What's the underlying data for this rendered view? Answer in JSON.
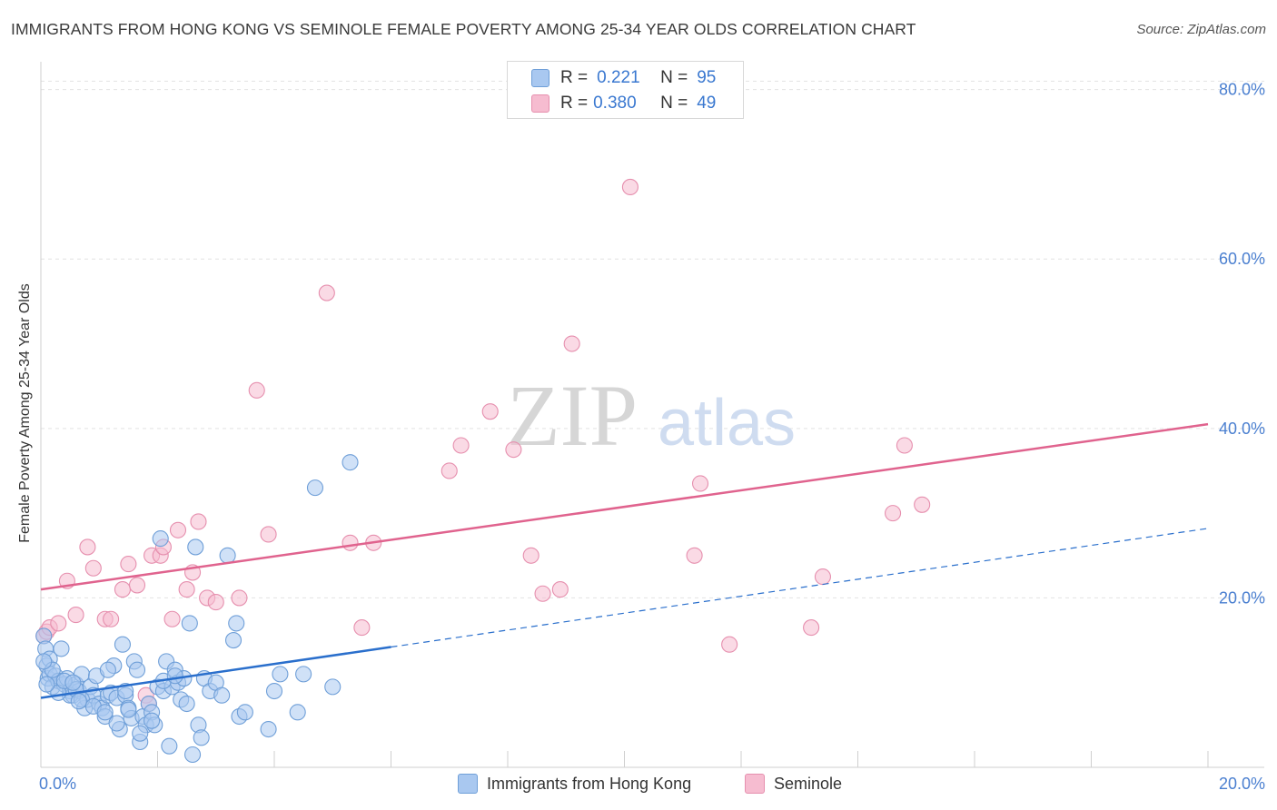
{
  "title": "IMMIGRANTS FROM HONG KONG VS SEMINOLE FEMALE POVERTY AMONG 25-34 YEAR OLDS CORRELATION CHART",
  "source": "Source: ZipAtlas.com",
  "watermark": {
    "zip": "ZIP",
    "atlas": "atlas"
  },
  "legend": {
    "rows": [
      {
        "r_label": "R =",
        "r_value": "0.221",
        "n_label": "N =",
        "n_value": "95"
      },
      {
        "r_label": "R =",
        "r_value": "0.380",
        "n_label": "N =",
        "n_value": "49"
      }
    ]
  },
  "bottom_legend": [
    "Immigrants from Hong Kong",
    "Seminole"
  ],
  "colors": {
    "blue_fill": "#a9c8f0",
    "blue_stroke": "#6f9fd8",
    "blue_line": "#2a6fcc",
    "pink_fill": "#f6bcd0",
    "pink_stroke": "#e68fae",
    "pink_line": "#e0638e",
    "tick_text": "#4a7fd0",
    "grid": "#e2e2e2"
  },
  "chart_data": {
    "type": "scatter",
    "title": "IMMIGRANTS FROM HONG KONG VS SEMINOLE FEMALE POVERTY AMONG 25-34 YEAR OLDS CORRELATION CHART",
    "xlabel": "",
    "ylabel": "Female Poverty Among 25-34 Year Olds",
    "xlim": [
      0,
      20
    ],
    "ylim": [
      0,
      82
    ],
    "x_ticks": [
      "0.0%",
      "20.0%"
    ],
    "y_ticks": [
      {
        "value": 20,
        "label": "20.0%"
      },
      {
        "value": 40,
        "label": "40.0%"
      },
      {
        "value": 60,
        "label": "60.0%"
      },
      {
        "value": 80,
        "label": "80.0%"
      }
    ],
    "series": [
      {
        "name": "Immigrants from Hong Kong",
        "color": "blue",
        "trend": {
          "x0": 0,
          "y0": 8.2,
          "x1": 20,
          "y1": 28.2,
          "solid_until": 6
        },
        "points": [
          [
            0.05,
            15.5
          ],
          [
            0.08,
            14.0
          ],
          [
            0.1,
            12.0
          ],
          [
            0.12,
            10.5
          ],
          [
            0.15,
            11.0
          ],
          [
            0.2,
            9.5
          ],
          [
            0.25,
            10.8
          ],
          [
            0.3,
            10.2
          ],
          [
            0.35,
            14.0
          ],
          [
            0.4,
            9.8
          ],
          [
            0.45,
            10.5
          ],
          [
            0.5,
            9.0
          ],
          [
            0.55,
            8.5
          ],
          [
            0.6,
            9.8
          ],
          [
            0.65,
            9.0
          ],
          [
            0.7,
            11.0
          ],
          [
            0.75,
            7.0
          ],
          [
            0.8,
            8.0
          ],
          [
            0.85,
            9.5
          ],
          [
            0.9,
            8.5
          ],
          [
            0.95,
            10.8
          ],
          [
            1.0,
            7.5
          ],
          [
            1.05,
            7.0
          ],
          [
            1.1,
            6.0
          ],
          [
            1.15,
            8.5
          ],
          [
            1.2,
            8.8
          ],
          [
            1.25,
            12.0
          ],
          [
            1.3,
            8.2
          ],
          [
            1.35,
            4.5
          ],
          [
            1.4,
            14.5
          ],
          [
            1.45,
            8.5
          ],
          [
            1.5,
            7.0
          ],
          [
            1.55,
            5.8
          ],
          [
            1.6,
            12.5
          ],
          [
            1.65,
            11.5
          ],
          [
            1.7,
            3.0
          ],
          [
            1.75,
            6.0
          ],
          [
            1.8,
            5.0
          ],
          [
            1.85,
            7.5
          ],
          [
            1.9,
            6.5
          ],
          [
            1.95,
            5.0
          ],
          [
            2.0,
            9.5
          ],
          [
            2.05,
            27.0
          ],
          [
            2.1,
            9.0
          ],
          [
            2.15,
            12.5
          ],
          [
            2.2,
            2.5
          ],
          [
            2.25,
            9.5
          ],
          [
            2.3,
            11.5
          ],
          [
            2.35,
            10.0
          ],
          [
            2.4,
            8.0
          ],
          [
            2.45,
            10.5
          ],
          [
            2.5,
            7.5
          ],
          [
            2.55,
            17.0
          ],
          [
            2.6,
            1.5
          ],
          [
            2.65,
            26.0
          ],
          [
            2.7,
            5.0
          ],
          [
            2.75,
            3.5
          ],
          [
            2.8,
            10.5
          ],
          [
            2.9,
            9.0
          ],
          [
            3.0,
            10.0
          ],
          [
            3.1,
            8.5
          ],
          [
            3.2,
            25.0
          ],
          [
            3.3,
            15.0
          ],
          [
            3.35,
            17.0
          ],
          [
            3.4,
            6.0
          ],
          [
            3.5,
            6.5
          ],
          [
            3.9,
            4.5
          ],
          [
            4.0,
            9.0
          ],
          [
            4.1,
            11.0
          ],
          [
            4.4,
            6.5
          ],
          [
            4.5,
            11.0
          ],
          [
            4.7,
            33.0
          ],
          [
            5.0,
            9.5
          ],
          [
            5.3,
            36.0
          ],
          [
            0.5,
            8.5
          ],
          [
            0.6,
            9.2
          ],
          [
            0.7,
            8.0
          ],
          [
            0.9,
            7.2
          ],
          [
            1.1,
            6.5
          ],
          [
            1.3,
            5.2
          ],
          [
            1.5,
            6.8
          ],
          [
            1.7,
            4.0
          ],
          [
            1.9,
            5.5
          ],
          [
            2.1,
            10.2
          ],
          [
            2.3,
            10.8
          ],
          [
            0.15,
            12.8
          ],
          [
            0.3,
            8.8
          ],
          [
            0.4,
            10.2
          ],
          [
            0.2,
            11.5
          ],
          [
            0.1,
            9.8
          ],
          [
            0.05,
            12.5
          ],
          [
            0.55,
            10.0
          ],
          [
            0.65,
            7.8
          ],
          [
            1.15,
            11.5
          ],
          [
            1.45,
            9.0
          ]
        ]
      },
      {
        "name": "Seminole",
        "color": "pink",
        "trend": {
          "x0": 0,
          "y0": 21.0,
          "x1": 20,
          "y1": 40.5
        },
        "points": [
          [
            0.05,
            15.5
          ],
          [
            0.1,
            16.0
          ],
          [
            0.15,
            16.5
          ],
          [
            0.3,
            17.0
          ],
          [
            0.45,
            22.0
          ],
          [
            0.6,
            18.0
          ],
          [
            0.8,
            26.0
          ],
          [
            0.9,
            23.5
          ],
          [
            1.1,
            17.5
          ],
          [
            1.2,
            17.5
          ],
          [
            1.4,
            21.0
          ],
          [
            1.5,
            24.0
          ],
          [
            1.65,
            21.5
          ],
          [
            1.8,
            8.5
          ],
          [
            1.85,
            7.5
          ],
          [
            1.9,
            25.0
          ],
          [
            2.05,
            25.0
          ],
          [
            2.1,
            26.0
          ],
          [
            2.25,
            17.5
          ],
          [
            2.35,
            28.0
          ],
          [
            2.5,
            21.0
          ],
          [
            2.6,
            23.0
          ],
          [
            2.7,
            29.0
          ],
          [
            2.85,
            20.0
          ],
          [
            3.0,
            19.5
          ],
          [
            3.4,
            20.0
          ],
          [
            3.7,
            44.5
          ],
          [
            3.9,
            27.5
          ],
          [
            4.9,
            56.0
          ],
          [
            5.3,
            26.5
          ],
          [
            5.5,
            16.5
          ],
          [
            5.7,
            26.5
          ],
          [
            7.0,
            35.0
          ],
          [
            7.2,
            38.0
          ],
          [
            7.7,
            42.0
          ],
          [
            8.1,
            37.5
          ],
          [
            8.4,
            25.0
          ],
          [
            8.6,
            20.5
          ],
          [
            8.9,
            21.0
          ],
          [
            9.1,
            50.0
          ],
          [
            10.1,
            68.5
          ],
          [
            11.2,
            25.0
          ],
          [
            11.3,
            33.5
          ],
          [
            11.8,
            14.5
          ],
          [
            13.2,
            16.5
          ],
          [
            13.4,
            22.5
          ],
          [
            14.6,
            30.0
          ],
          [
            14.8,
            38.0
          ],
          [
            15.1,
            31.0
          ]
        ]
      }
    ]
  }
}
